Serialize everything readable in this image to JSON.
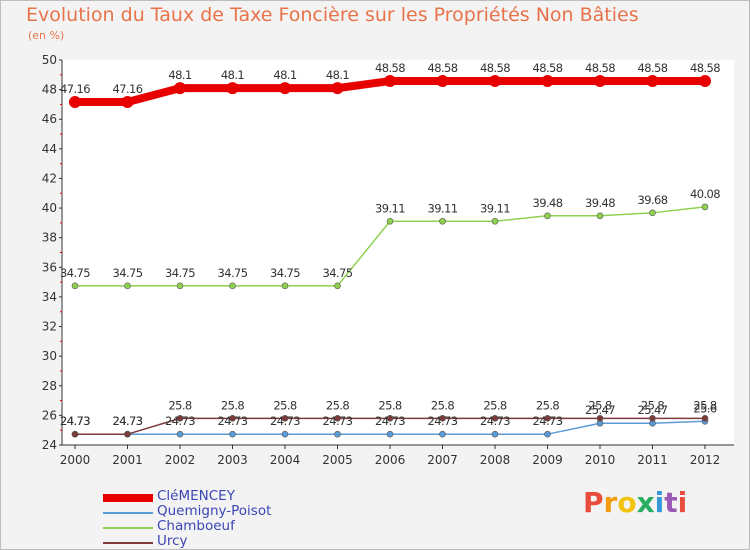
{
  "title": "Evolution du Taux de Taxe Foncière sur les Propriétés Non Bâties",
  "unit_label": "(en %)",
  "logo": {
    "text": "Proxiti",
    "letters": [
      "P",
      "r",
      "o",
      "x",
      "i",
      "t",
      "i"
    ],
    "colors": [
      "#e74c3c",
      "#f39c12",
      "#f1c40f",
      "#27ae60",
      "#3498db",
      "#9b59b6",
      "#e74c3c"
    ]
  },
  "chart_data": {
    "type": "line",
    "title": "Evolution du Taux de Taxe Foncière sur les Propriétés Non Bâties",
    "ylabel": "(en %)",
    "xlabel": "",
    "ylim": [
      24,
      50
    ],
    "yticks": [
      24,
      26,
      28,
      30,
      32,
      34,
      36,
      38,
      40,
      42,
      44,
      46,
      48,
      50
    ],
    "x": [
      "2000",
      "2001",
      "2002",
      "2003",
      "2004",
      "2005",
      "2006",
      "2007",
      "2008",
      "2009",
      "2010",
      "2011",
      "2012"
    ],
    "grid": false,
    "legend_position": "bottom-left",
    "series": [
      {
        "name": "CléMENCEY",
        "color": "#e80000",
        "width": 8,
        "values": [
          47.16,
          47.16,
          48.1,
          48.1,
          48.1,
          48.1,
          48.58,
          48.58,
          48.58,
          48.58,
          48.58,
          48.58,
          48.58
        ],
        "labels": [
          "47.16",
          "47.16",
          "48.1",
          "48.1",
          "48.1",
          "48.1",
          "48.58",
          "48.58",
          "48.58",
          "48.58",
          "48.58",
          "48.58",
          "48.58"
        ]
      },
      {
        "name": "Quemigny-Poisot",
        "color": "#5b9bd5",
        "width": 1.5,
        "values": [
          24.73,
          24.73,
          24.73,
          24.73,
          24.73,
          24.73,
          24.73,
          24.73,
          24.73,
          24.73,
          25.47,
          25.47,
          25.6
        ],
        "labels": [
          "24.73",
          "24.73",
          "24.73",
          "24.73",
          "24.73",
          "24.73",
          "24.73",
          "24.73",
          "24.73",
          "24.73",
          "25.47",
          "25.47",
          "25.6"
        ]
      },
      {
        "name": "Chamboeuf",
        "color": "#8fd14f",
        "width": 1.5,
        "values": [
          34.75,
          34.75,
          34.75,
          34.75,
          34.75,
          34.75,
          39.11,
          39.11,
          39.11,
          39.48,
          39.48,
          39.68,
          40.08
        ],
        "labels": [
          "34.75",
          "34.75",
          "34.75",
          "34.75",
          "34.75",
          "34.75",
          "39.11",
          "39.11",
          "39.11",
          "39.48",
          "39.48",
          "39.68",
          "40.08"
        ]
      },
      {
        "name": "Urcy",
        "color": "#7b3b3b",
        "width": 1.5,
        "values": [
          24.73,
          24.73,
          25.8,
          25.8,
          25.8,
          25.8,
          25.8,
          25.8,
          25.8,
          25.8,
          25.8,
          25.8,
          25.8
        ],
        "labels": [
          "24.73",
          "24.73",
          "25.8",
          "25.8",
          "25.8",
          "25.8",
          "25.8",
          "25.8",
          "25.8",
          "25.8",
          "25.8",
          "25.8",
          "25.8"
        ]
      }
    ]
  }
}
